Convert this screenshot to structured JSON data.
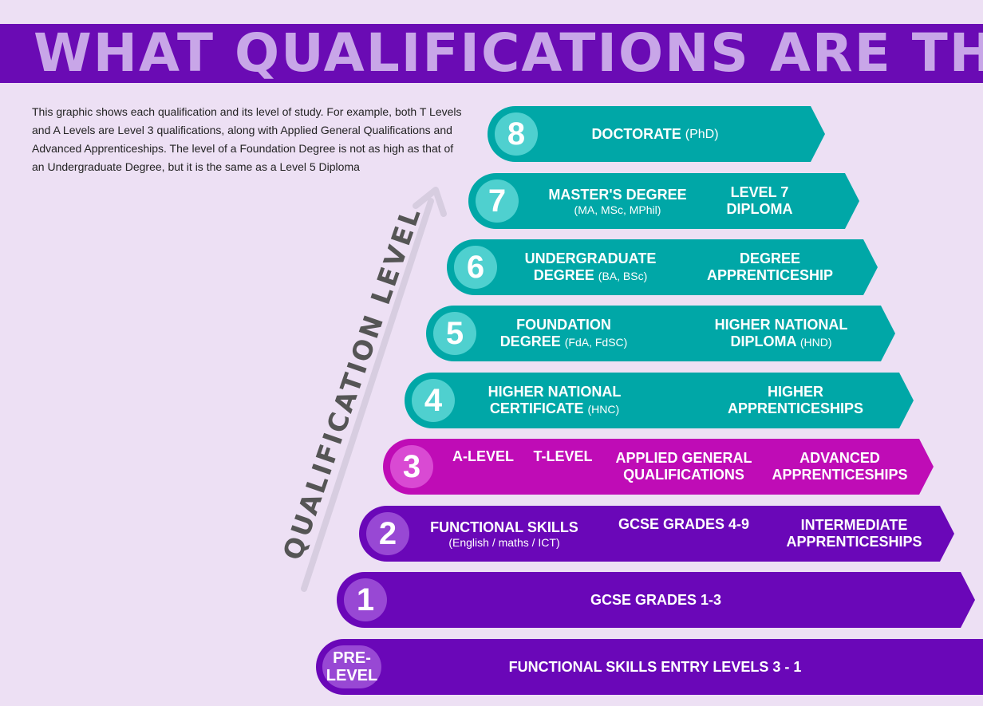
{
  "title": "WHAT QUALIFICATIONS ARE THERE?",
  "intro": "This graphic shows each qualification and its level of study. For example, both T Levels and A Levels are Level 3 qualifications, along with Applied General Qualifications and Advanced Apprenticeships. The level of a Foundation Degree is not as high as that of an Undergraduate Degree, but it is the same as a Level 5 Diploma",
  "axis_label": "QUALIFICATION LEVEL",
  "colors": {
    "banner": "#6a0bb4",
    "teal": "#00a7a7",
    "magenta": "#bf0cb6",
    "purple": "#6a07b8",
    "background": "#ede0f4"
  },
  "levels": {
    "l8": {
      "num": "8",
      "doctorate": {
        "main": "DOCTORATE",
        "note": "(PhD)"
      }
    },
    "l7": {
      "num": "7",
      "masters": {
        "line1": "MASTER'S DEGREE",
        "note": "(MA, MSc, MPhil)"
      },
      "diploma": {
        "line1": "LEVEL 7",
        "line2": "DIPLOMA"
      }
    },
    "l6": {
      "num": "6",
      "undergrad": {
        "line1": "UNDERGRADUATE",
        "line2": "DEGREE",
        "note": "(BA, BSc)"
      },
      "apprenticeship": {
        "line1": "DEGREE",
        "line2": "APPRENTICESHIP"
      }
    },
    "l5": {
      "num": "5",
      "foundation": {
        "line1": "FOUNDATION",
        "line2": "DEGREE",
        "note": "(FdA, FdSC)"
      },
      "hnd": {
        "line1": "HIGHER NATIONAL",
        "line2": "DIPLOMA",
        "note": "(HND)"
      }
    },
    "l4": {
      "num": "4",
      "hnc": {
        "line1": "HIGHER NATIONAL",
        "line2": "CERTIFICATE",
        "note": "(HNC)"
      },
      "apprenticeships": {
        "line1": "HIGHER",
        "line2": "APPRENTICESHIPS"
      }
    },
    "l3": {
      "num": "3",
      "alevel": "A-LEVEL",
      "tlevel": "T-LEVEL",
      "applied": {
        "line1": "APPLIED GENERAL",
        "line2": "QUALIFICATIONS"
      },
      "advanced": {
        "line1": "ADVANCED",
        "line2": "APPRENTICESHIPS"
      }
    },
    "l2": {
      "num": "2",
      "functional": {
        "line1": "FUNCTIONAL SKILLS",
        "note": "(English / maths / ICT)"
      },
      "gcse": "GCSE GRADES 4-9",
      "intermediate": {
        "line1": "INTERMEDIATE",
        "line2": "APPRENTICESHIPS"
      }
    },
    "l1": {
      "num": "1",
      "gcse": "GCSE GRADES 1-3"
    },
    "pre": {
      "line1": "PRE-",
      "line2": "LEVEL",
      "entry": "FUNCTIONAL SKILLS ENTRY LEVELS 3 - 1"
    }
  }
}
